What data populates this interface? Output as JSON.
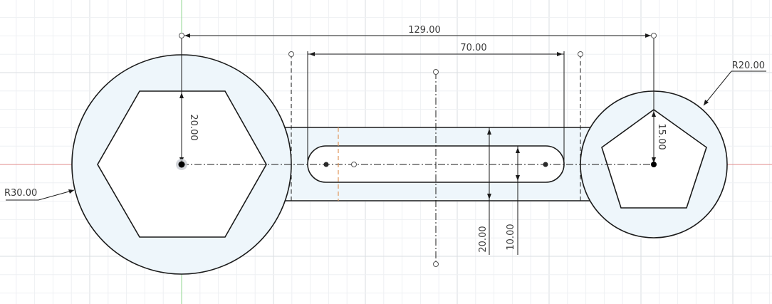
{
  "colors": {
    "background": "#ffffff",
    "grid_minor": "#eef0f3",
    "grid_major": "#dadde2",
    "axis_x": "#e08a8a",
    "axis_y": "#8fd68f",
    "profile_fill": "#eef6fb",
    "geometry": "#1a1a1a",
    "dimension": "#1a1a1a",
    "construction_highlight": "#e0955a",
    "point_fill": "#ffffff",
    "point_stroke": "#555555"
  },
  "dimensions": {
    "overall_distance": "129.00",
    "slot_length": "70.00",
    "hexagon_size": "20.00",
    "pentagon_size": "15.00",
    "large_circle_radius": "R30.00",
    "small_circle_radius": "R20.00",
    "link_width": "20.00",
    "slot_width": "10.00"
  }
}
